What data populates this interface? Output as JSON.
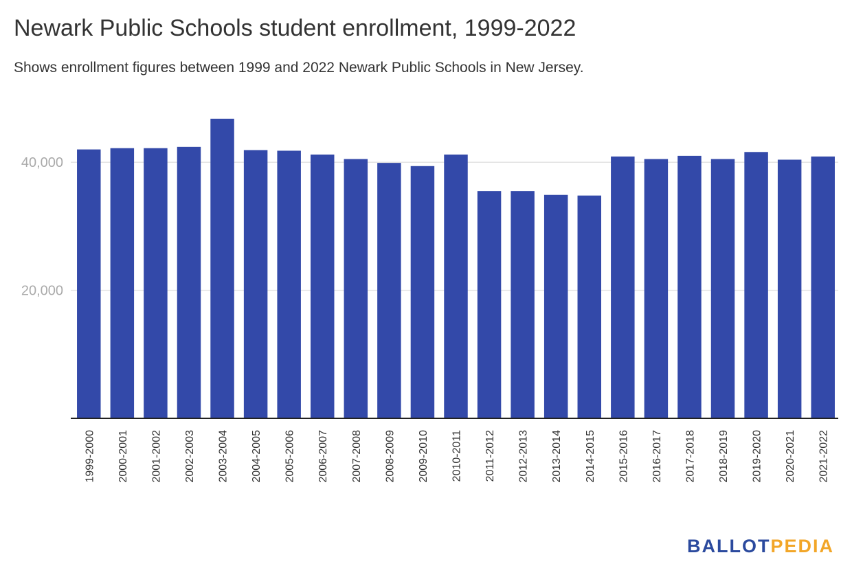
{
  "chart_data": {
    "type": "bar",
    "title": "Newark Public Schools student enrollment, 1999-2022",
    "subtitle": "Shows enrollment figures between 1999 and 2022 Newark Public Schools in New Jersey.",
    "xlabel": "",
    "ylabel": "",
    "ylim": [
      0,
      50000
    ],
    "yticks": [
      20000,
      40000
    ],
    "ytick_labels": [
      "20,000",
      "40,000"
    ],
    "grid": true,
    "legend": "none",
    "bar_color": "#3349a9",
    "categories": [
      "1999-2000",
      "2000-2001",
      "2001-2002",
      "2002-2003",
      "2003-2004",
      "2004-2005",
      "2005-2006",
      "2006-2007",
      "2007-2008",
      "2008-2009",
      "2009-2010",
      "2010-2011",
      "2011-2012",
      "2012-2013",
      "2013-2014",
      "2014-2015",
      "2015-2016",
      "2016-2017",
      "2017-2018",
      "2018-2019",
      "2019-2020",
      "2020-2021",
      "2021-2022"
    ],
    "values": [
      42000,
      42200,
      42200,
      42400,
      46800,
      41900,
      41800,
      41200,
      40500,
      39900,
      39400,
      41200,
      35500,
      35500,
      34900,
      34800,
      40900,
      40500,
      41000,
      40500,
      41600,
      40400,
      40900
    ]
  },
  "brand": {
    "part1": "BALLOT",
    "part2": "PEDIA",
    "color1": "#2b4a9e",
    "color2": "#f2a628"
  }
}
